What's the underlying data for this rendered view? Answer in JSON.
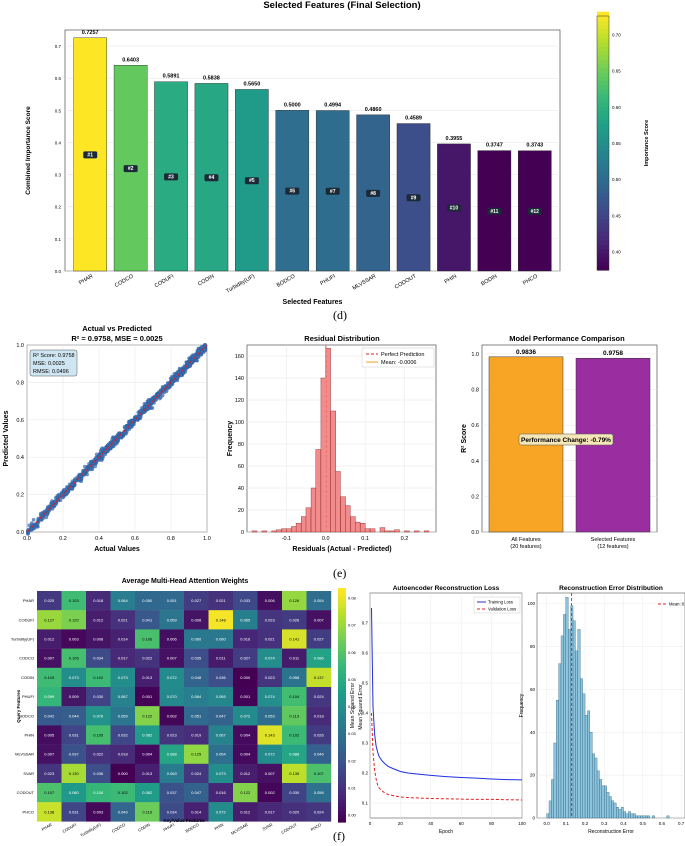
{
  "captions": {
    "d": "(d)",
    "e": "(e)",
    "f": "(f)"
  },
  "chart_data": [
    {
      "type": "bar",
      "title": "Selected Features (Final Selection)",
      "xlabel": "Selected Features",
      "ylabel": "Combined Importance Score",
      "ylim": [
        0,
        0.75
      ],
      "yticks": [
        "0.0",
        "0.1",
        "0.2",
        "0.3",
        "0.4",
        "0.5",
        "0.6",
        "0.7"
      ],
      "categories": [
        "PHAR",
        "CODCO",
        "CODUFI",
        "CODIN",
        "Turbidity(UF)",
        "BODCO",
        "PHUFI",
        "MLVSSAR",
        "CODOUT",
        "PHIN",
        "BODIN",
        "PHCO"
      ],
      "values": [
        0.7257,
        0.6403,
        0.5891,
        0.5838,
        0.565,
        0.5,
        0.4994,
        0.486,
        0.4589,
        0.3955,
        0.3747,
        0.3743
      ],
      "value_labels": [
        "0.7257",
        "0.6403",
        "0.5891",
        "0.5838",
        "0.5650",
        "0.5000",
        "0.4994",
        "0.4860",
        "0.4589",
        "0.3955",
        "0.3747",
        "0.3743"
      ],
      "ranks": [
        "#1",
        "#2",
        "#3",
        "#4",
        "#5",
        "#6",
        "#7",
        "#8",
        "#9",
        "#10",
        "#11",
        "#12"
      ],
      "colorbar": {
        "label": "Importance Score",
        "ticks": [
          "0.40",
          "0.45",
          "0.50",
          "0.55",
          "0.60",
          "0.65",
          "0.70"
        ],
        "range": [
          0.3743,
          0.7257
        ]
      }
    },
    {
      "type": "scatter",
      "title": "Actual vs Predicted",
      "subtitle": "R² = 0.9758, MSE = 0.0025",
      "xlabel": "Actual Values",
      "ylabel": "Predicted Values",
      "xlim": [
        0,
        1
      ],
      "ylim": [
        0,
        1
      ],
      "xticks": [
        "0.0",
        "0.2",
        "0.4",
        "0.6",
        "0.8",
        "1.0"
      ],
      "yticks": [
        "0.0",
        "0.2",
        "0.4",
        "0.6",
        "0.8",
        "1.0"
      ],
      "stats": [
        "R² Score: 0.9758",
        "MSE: 0.0025",
        "RMSE: 0.0496"
      ],
      "note": "approximately 1000 points scattered around y = x"
    },
    {
      "type": "bar",
      "title": "Residual Distribution",
      "xlabel": "Residuals (Actual - Predicted)",
      "ylabel": "Frequency",
      "xlim": [
        -0.2,
        0.28
      ],
      "ylim": [
        0,
        170
      ],
      "xticks": [
        "-0.1",
        "0.0",
        "0.1",
        "0.2"
      ],
      "yticks": [
        "0",
        "20",
        "40",
        "60",
        "80",
        "100",
        "120",
        "140",
        "160"
      ],
      "bin_width": 0.0125,
      "bin_centers": [
        -0.181,
        -0.169,
        -0.156,
        -0.144,
        -0.131,
        -0.119,
        -0.106,
        -0.094,
        -0.081,
        -0.069,
        -0.056,
        -0.044,
        -0.031,
        -0.019,
        -0.006,
        0.006,
        0.019,
        0.031,
        0.044,
        0.056,
        0.069,
        0.081,
        0.094,
        0.106,
        0.119,
        0.131,
        0.144,
        0.156,
        0.169,
        0.181,
        0.194,
        0.206,
        0.219,
        0.231,
        0.244,
        0.256
      ],
      "counts": [
        1,
        0,
        1,
        0,
        1,
        2,
        3,
        3,
        5,
        8,
        14,
        22,
        40,
        75,
        140,
        167,
        110,
        55,
        32,
        24,
        14,
        9,
        8,
        3,
        3,
        0,
        4,
        1,
        1,
        2,
        0,
        1,
        0,
        1,
        0,
        1
      ],
      "legend": [
        "Perfect Prediction",
        "Mean: -0.0006"
      ],
      "mean": -0.0006
    },
    {
      "type": "bar",
      "title": "Model Performance Comparison",
      "ylabel": "R² Score",
      "ylim": [
        0,
        1.05
      ],
      "yticks": [
        "0.0",
        "0.2",
        "0.4",
        "0.6",
        "0.8",
        "1.0"
      ],
      "categories": [
        "All Features\n(20 features)",
        "Selected Features\n(12 features)"
      ],
      "values": [
        0.9836,
        0.9758
      ],
      "value_labels": [
        "0.9836",
        "0.9758"
      ],
      "colors": [
        "#f8a526",
        "#9a2ea0"
      ],
      "annotation": "Performance Change: -0.79%"
    },
    {
      "type": "heatmap",
      "title": "Average Multi-Head Attention Weights",
      "xlabel": "Key/Value Features",
      "ylabel": "Query Features",
      "rows": [
        "PHAR",
        "CODUFI",
        "Turbidity(UF)",
        "CODCO",
        "CODIN",
        "PHUFI",
        "BODCO",
        "PHIN",
        "MLVSSAR",
        "SVAR",
        "CODOUT",
        "PHCO"
      ],
      "cols": [
        "PHAR",
        "CODUFI",
        "Turbidity(UF)",
        "CODCO",
        "CODIN",
        "PHUFI",
        "BODCO",
        "PHIN",
        "MLVSSAR",
        "SVAR",
        "CODOUT",
        "PHCO"
      ],
      "values": [
        [
          0.025,
          0.103,
          0.018,
          0.064,
          0.05,
          0.051,
          0.027,
          0.021,
          0.033,
          0.006,
          0.126,
          0.054
        ],
        [
          0.127,
          0.12,
          0.012,
          0.021,
          0.041,
          0.059,
          0.008,
          0.148,
          0.065,
          0.023,
          0.026,
          0.007
        ],
        [
          0.012,
          0.003,
          0.008,
          0.014,
          0.106,
          0.006,
          0.06,
          0.06,
          0.016,
          0.021,
          0.141,
          0.027
        ],
        [
          0.007,
          0.105,
          0.034,
          0.017,
          0.022,
          0.007,
          0.035,
          0.011,
          0.027,
          0.074,
          0.011,
          0.086
        ],
        [
          0.103,
          0.073,
          0.102,
          0.073,
          0.013,
          0.072,
          0.048,
          0.036,
          0.0,
          0.023,
          0.058,
          0.137
        ],
        [
          0.099,
          0.009,
          0.03,
          0.067,
          0.001,
          0.07,
          0.064,
          0.069,
          0.001,
          0.074,
          0.104,
          0.024
        ],
        [
          0.042,
          0.044,
          0.076,
          0.059,
          0.122,
          0.002,
          0.051,
          0.047,
          0.072,
          0.053,
          0.113,
          0.018
        ],
        [
          0.005,
          0.031,
          0.105,
          0.032,
          0.082,
          0.023,
          0.019,
          0.067,
          0.004,
          0.143,
          0.102,
          0.026
        ],
        [
          0.007,
          0.037,
          0.022,
          0.018,
          0.004,
          0.088,
          0.125,
          0.054,
          0.004,
          0.072,
          0.088,
          0.046
        ],
        [
          0.023,
          0.13,
          0.036,
          0.0,
          0.013,
          0.063,
          0.024,
          0.073,
          0.012,
          0.007,
          0.135,
          0.107
        ],
        [
          0.107,
          0.08,
          0.1,
          0.102,
          0.082,
          0.037,
          0.047,
          0.016,
          0.122,
          0.002,
          0.03,
          0.056
        ],
        [
          0.138,
          0.031,
          0.003,
          0.049,
          0.116,
          0.034,
          0.014,
          0.072,
          0.012,
          0.017,
          0.02,
          0.024
        ]
      ],
      "colorbar": {
        "label": "Mean Squared Error",
        "ticks": [
          "0.00",
          "0.01",
          "0.02",
          "0.03",
          "0.04",
          "0.05",
          "0.06",
          "0.07",
          "0.08"
        ]
      }
    },
    {
      "type": "line",
      "title": "Autoencoder Reconstruction Loss",
      "xlabel": "Epoch",
      "ylabel": "Mean Squared Error",
      "xlim": [
        0,
        100
      ],
      "ylim": [
        0.05,
        0.8
      ],
      "xticks": [
        "0",
        "20",
        "40",
        "60",
        "80",
        "100"
      ],
      "yticks": [
        "0.1",
        "0.2",
        "0.3",
        "0.4",
        "0.5",
        "0.6",
        "0.7"
      ],
      "series": [
        {
          "name": "Training Loss",
          "color": "#1f2fe0",
          "x": [
            1,
            2,
            3,
            4,
            5,
            6,
            8,
            10,
            12,
            15,
            20,
            25,
            30,
            40,
            50,
            60,
            70,
            80,
            90,
            100
          ],
          "y": [
            0.75,
            0.42,
            0.33,
            0.29,
            0.27,
            0.255,
            0.24,
            0.23,
            0.222,
            0.215,
            0.205,
            0.2,
            0.197,
            0.192,
            0.188,
            0.185,
            0.183,
            0.18,
            0.178,
            0.177
          ]
        },
        {
          "name": "Validation Loss",
          "color": "#e01f1f",
          "x": [
            1,
            2,
            3,
            4,
            5,
            6,
            8,
            10,
            12,
            15,
            20,
            25,
            30,
            40,
            50,
            60,
            70,
            80,
            90,
            100
          ],
          "y": [
            0.4,
            0.27,
            0.21,
            0.18,
            0.16,
            0.15,
            0.14,
            0.133,
            0.128,
            0.125,
            0.12,
            0.118,
            0.117,
            0.115,
            0.114,
            0.113,
            0.112,
            0.112,
            0.111,
            0.11
          ]
        }
      ]
    },
    {
      "type": "bar",
      "title": "Reconstruction Error Distribution",
      "xlabel": "Reconstruction Error",
      "ylabel": "Frequency",
      "xlim": [
        -0.05,
        0.72
      ],
      "ylim": [
        0,
        105
      ],
      "xticks": [
        "0.0",
        "0.1",
        "0.2",
        "0.3",
        "0.4",
        "0.5",
        "0.6",
        "0.7"
      ],
      "yticks": [
        "0",
        "20",
        "40",
        "60",
        "80",
        "100"
      ],
      "bin_width": 0.0125,
      "counts": [
        2,
        8,
        18,
        35,
        55,
        72,
        85,
        95,
        103,
        88,
        99,
        92,
        78,
        88,
        65,
        58,
        48,
        50,
        40,
        30,
        28,
        22,
        18,
        15,
        15,
        12,
        10,
        8,
        7,
        5,
        4,
        5,
        3,
        2,
        3,
        2,
        2,
        1,
        1,
        1,
        1,
        1,
        1,
        0,
        1,
        0,
        0,
        0,
        0,
        0,
        1
      ],
      "legend": [
        "Mean: 0.1"
      ],
      "mean": 0.13
    }
  ]
}
